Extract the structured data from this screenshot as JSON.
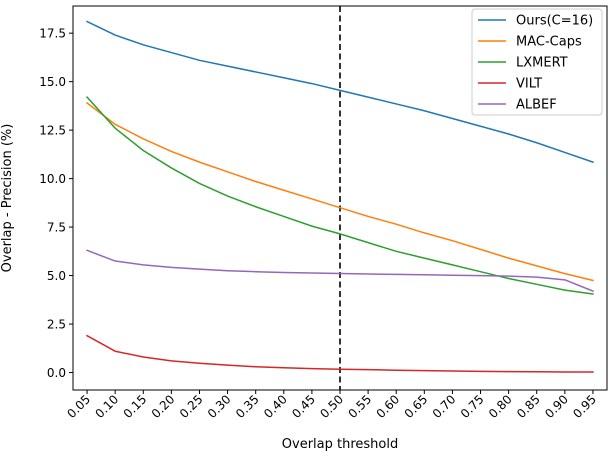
{
  "chart_data": {
    "type": "line",
    "title": "",
    "xlabel": "Overlap threshold",
    "ylabel": "Overlap - Precision (%)",
    "x": [
      0.05,
      0.1,
      0.15,
      0.2,
      0.25,
      0.3,
      0.35,
      0.4,
      0.45,
      0.5,
      0.55,
      0.6,
      0.65,
      0.7,
      0.75,
      0.8,
      0.85,
      0.9,
      0.95
    ],
    "x_tick_labels": [
      "0.05",
      "0.10",
      "0.15",
      "0.20",
      "0.25",
      "0.30",
      "0.35",
      "0.40",
      "0.45",
      "0.50",
      "0.55",
      "0.60",
      "0.65",
      "0.70",
      "0.75",
      "0.80",
      "0.85",
      "0.90",
      "0.95"
    ],
    "xlim": [
      0.025,
      0.975
    ],
    "ylim": [
      -0.9,
      18.9
    ],
    "y_ticks": [
      0.0,
      2.5,
      5.0,
      7.5,
      10.0,
      12.5,
      15.0,
      17.5
    ],
    "y_tick_labels": [
      "0.0",
      "2.5",
      "5.0",
      "7.5",
      "10.0",
      "12.5",
      "15.0",
      "17.5"
    ],
    "grid": false,
    "legend_position": "top-right",
    "reference_line": {
      "x": 0.5,
      "style": "dashed",
      "color": "#000000"
    },
    "series": [
      {
        "name": "Ours(C=16)",
        "color": "#1f77b4",
        "values": [
          18.1,
          17.4,
          16.9,
          16.5,
          16.1,
          15.8,
          15.5,
          15.2,
          14.9,
          14.55,
          14.2,
          13.85,
          13.5,
          13.1,
          12.7,
          12.3,
          11.85,
          11.35,
          10.85
        ]
      },
      {
        "name": "MAC-Caps",
        "color": "#ff7f0e",
        "values": [
          13.9,
          12.8,
          12.05,
          11.4,
          10.85,
          10.35,
          9.85,
          9.4,
          8.95,
          8.5,
          8.05,
          7.65,
          7.2,
          6.8,
          6.35,
          5.9,
          5.5,
          5.1,
          4.75
        ]
      },
      {
        "name": "LXMERT",
        "color": "#2ca02c",
        "values": [
          14.2,
          12.6,
          11.45,
          10.55,
          9.75,
          9.1,
          8.55,
          8.05,
          7.55,
          7.15,
          6.7,
          6.25,
          5.9,
          5.55,
          5.2,
          4.85,
          4.55,
          4.25,
          4.05
        ]
      },
      {
        "name": "VILT",
        "color": "#d62728",
        "values": [
          1.9,
          1.1,
          0.8,
          0.6,
          0.48,
          0.38,
          0.3,
          0.25,
          0.2,
          0.17,
          0.15,
          0.12,
          0.1,
          0.08,
          0.06,
          0.05,
          0.04,
          0.03,
          0.03
        ]
      },
      {
        "name": "ALBEF",
        "color": "#9467bd",
        "values": [
          6.3,
          5.75,
          5.55,
          5.42,
          5.33,
          5.25,
          5.2,
          5.16,
          5.13,
          5.11,
          5.08,
          5.06,
          5.04,
          5.02,
          5.0,
          4.97,
          4.92,
          4.78,
          4.2
        ]
      }
    ]
  }
}
